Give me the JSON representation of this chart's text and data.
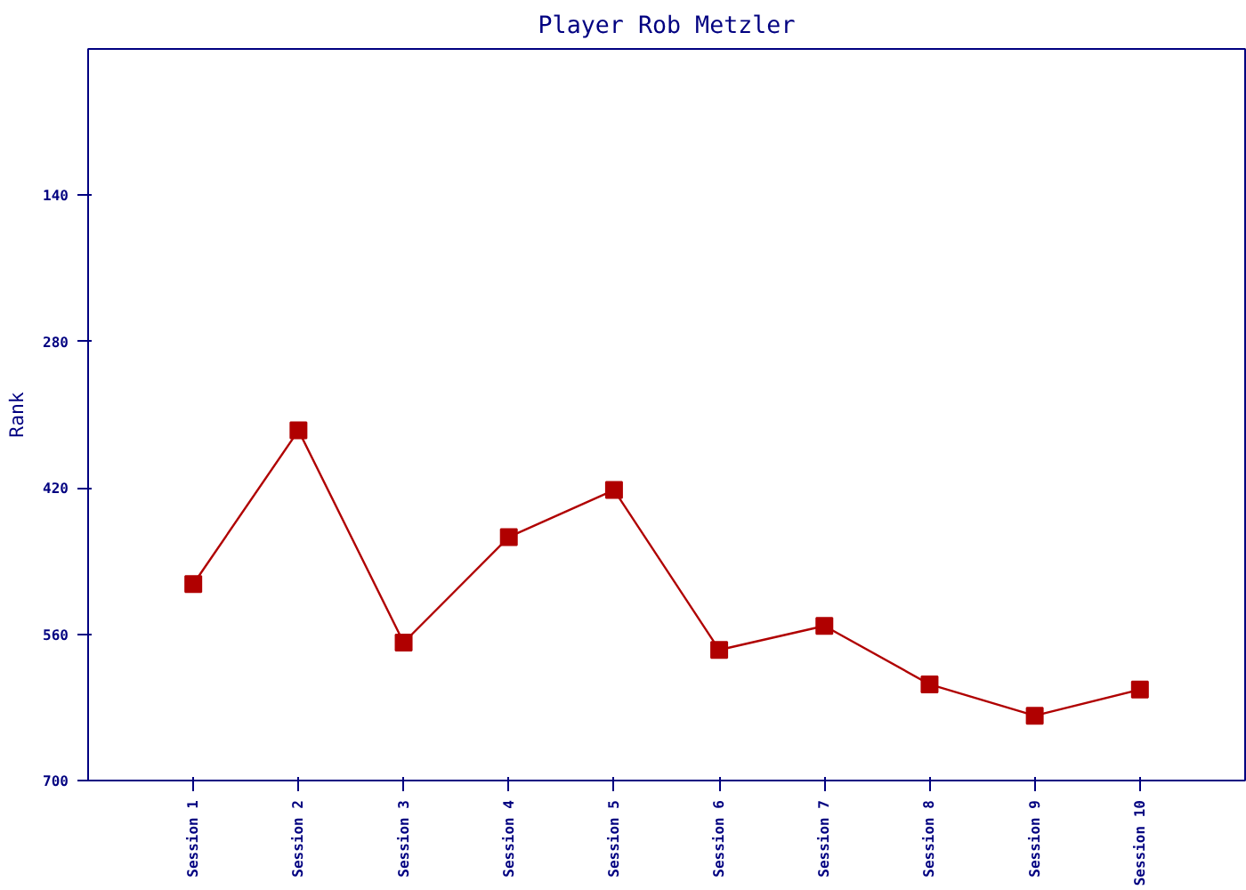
{
  "chart_data": {
    "type": "line",
    "title": "Player Rob Metzler",
    "ylabel": "Rank",
    "categories": [
      "Session 1",
      "Session 2",
      "Session 3",
      "Session 4",
      "Session 5",
      "Session 6",
      "Session 7",
      "Session 8",
      "Session 9",
      "Session 10"
    ],
    "series": [
      {
        "color": "#b00000",
        "values": [
          512,
          365,
          568,
          467,
          422,
          575,
          552,
          608,
          638,
          613
        ]
      }
    ],
    "ylim": [
      700,
      0
    ],
    "yticks": [
      140,
      280,
      420,
      560,
      700
    ],
    "marker": "square",
    "line_style": "solid"
  }
}
